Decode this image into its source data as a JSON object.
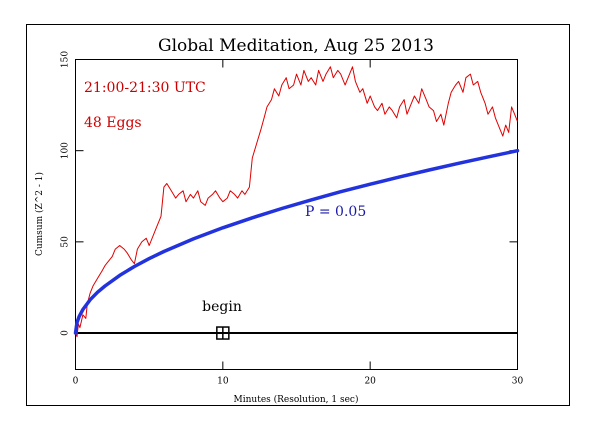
{
  "chart_data": {
    "type": "line",
    "title": "Global Meditation, Aug 25 2013",
    "xlabel": "Minutes (Resolution, 1 sec)",
    "ylabel": "Cumsum (Z^2 - 1)",
    "xlim": [
      0,
      30
    ],
    "ylim": [
      -20,
      150
    ],
    "x_ticks": [
      0,
      10,
      20,
      30
    ],
    "y_ticks": [
      0,
      50,
      100,
      150
    ],
    "grid": false,
    "annotations": {
      "time_range": "21:00-21:30 UTC",
      "eggs": "48 Eggs",
      "p_label": "P = 0.05",
      "begin_label": "begin",
      "begin_x": 10,
      "begin_y": 0
    },
    "colors": {
      "data": "#e00000",
      "p_curve": "#2233dd",
      "baseline": "#000000",
      "annotation_red": "#cc0000",
      "annotation_blue": "#1a1aa8"
    },
    "series": [
      {
        "role": "cumsum",
        "x": [
          0,
          0.1,
          0.2,
          0.3,
          0.5,
          0.7,
          0.8,
          1.0,
          1.2,
          1.5,
          1.8,
          2.0,
          2.3,
          2.5,
          2.7,
          3.0,
          3.3,
          3.5,
          3.8,
          4.0,
          4.2,
          4.5,
          4.8,
          5.0,
          5.3,
          5.5,
          5.8,
          6.0,
          6.2,
          6.5,
          6.8,
          7.0,
          7.3,
          7.5,
          7.8,
          8.0,
          8.3,
          8.5,
          8.8,
          9.0,
          9.3,
          9.5,
          9.8,
          10.0,
          10.3,
          10.5,
          10.8,
          11.0,
          11.3,
          11.5,
          11.8,
          12.0,
          12.3,
          12.6,
          12.8,
          13.0,
          13.3,
          13.5,
          13.8,
          14.0,
          14.3,
          14.5,
          14.8,
          15.0,
          15.3,
          15.5,
          15.8,
          16.0,
          16.3,
          16.5,
          16.8,
          17.0,
          17.3,
          17.5,
          17.8,
          18.0,
          18.3,
          18.5,
          18.8,
          19.0,
          19.3,
          19.5,
          19.8,
          20.0,
          20.3,
          20.5,
          20.8,
          21.0,
          21.3,
          21.5,
          21.8,
          22.0,
          22.3,
          22.5,
          22.8,
          23.0,
          23.3,
          23.5,
          23.8,
          24.0,
          24.3,
          24.5,
          24.8,
          25.0,
          25.3,
          25.5,
          25.8,
          26.0,
          26.3,
          26.5,
          26.8,
          27.0,
          27.3,
          27.5,
          27.8,
          28.0,
          28.3,
          28.5,
          28.8,
          29.0,
          29.2,
          29.4,
          29.6,
          29.8,
          30.0
        ],
        "y": [
          0,
          -2,
          5,
          3,
          10,
          8,
          16,
          22,
          26,
          30,
          34,
          37,
          40,
          42,
          46,
          48,
          46,
          44,
          40,
          38,
          46,
          50,
          52,
          48,
          54,
          58,
          64,
          80,
          82,
          78,
          74,
          76,
          78,
          72,
          76,
          74,
          78,
          72,
          70,
          74,
          76,
          78,
          74,
          72,
          74,
          78,
          76,
          74,
          78,
          76,
          80,
          96,
          104,
          112,
          118,
          124,
          128,
          134,
          130,
          136,
          140,
          134,
          136,
          142,
          136,
          144,
          138,
          140,
          136,
          144,
          138,
          142,
          146,
          140,
          144,
          142,
          136,
          140,
          146,
          138,
          132,
          134,
          126,
          130,
          124,
          122,
          126,
          120,
          124,
          122,
          118,
          124,
          128,
          120,
          126,
          130,
          126,
          134,
          128,
          124,
          122,
          116,
          120,
          114,
          126,
          132,
          136,
          138,
          132,
          140,
          142,
          136,
          138,
          132,
          126,
          120,
          124,
          118,
          112,
          108,
          114,
          110,
          124,
          120,
          116
        ]
      },
      {
        "role": "p05_envelope",
        "x": [
          0,
          0.1,
          0.25,
          0.5,
          1,
          1.5,
          2,
          3,
          4,
          5,
          6,
          8,
          10,
          12,
          14,
          16,
          18,
          20,
          22,
          24,
          26,
          28,
          30
        ],
        "y": [
          0,
          5.8,
          9.1,
          12.9,
          18.3,
          22.4,
          25.8,
          31.6,
          36.5,
          40.8,
          44.7,
          51.6,
          57.7,
          63.2,
          68.3,
          73.0,
          77.5,
          81.6,
          85.6,
          89.4,
          93.1,
          96.6,
          100
        ]
      }
    ]
  }
}
